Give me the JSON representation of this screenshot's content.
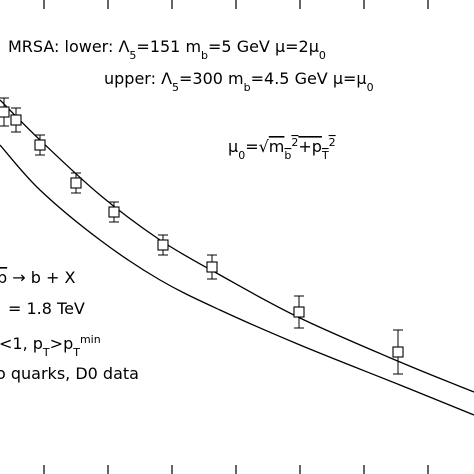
{
  "chart_data": {
    "type": "scatter",
    "xlim": [
      0,
      474
    ],
    "ylim": [
      0,
      474
    ],
    "xticks": [
      44,
      108,
      172,
      236,
      300,
      364,
      428
    ],
    "x": [
      4,
      16,
      40,
      76,
      114,
      163,
      212,
      299,
      398
    ],
    "series": [
      {
        "color": "#000000",
        "values": [
          362,
          354,
          329,
          291,
          262,
          229,
          207,
          162,
          122
        ],
        "errors": [
          14,
          12,
          10,
          10,
          10,
          10,
          12,
          16,
          22
        ]
      }
    ],
    "curves": [
      {
        "color": "#000000",
        "x": [
          0,
          40,
          100,
          160,
          220,
          300,
          400,
          474
        ],
        "values": [
          374,
          334,
          279,
          234,
          199,
          156,
          112,
          82
        ]
      },
      {
        "color": "#000000",
        "x": [
          0,
          40,
          100,
          160,
          220,
          300,
          400,
          474
        ],
        "values": [
          329,
          284,
          234,
          194,
          164,
          129,
          89,
          59
        ]
      }
    ],
    "annotations": [
      {
        "runs": [
          {
            "text": "MRSA:   lower:  Λ"
          },
          {
            "text": "5",
            "shift": "sub"
          },
          {
            "text": "=151   m"
          },
          {
            "text": "b",
            "shift": "sub"
          },
          {
            "text": "=5 GeV   μ=2μ"
          },
          {
            "text": "0",
            "shift": "sub"
          }
        ]
      },
      {
        "runs": [
          {
            "text": "upper:  Λ"
          },
          {
            "text": "5",
            "shift": "sub"
          },
          {
            "text": "=300   m"
          },
          {
            "text": "b",
            "shift": "sub"
          },
          {
            "text": "=4.5 GeV   μ=μ"
          },
          {
            "text": "0",
            "shift": "sub"
          }
        ]
      },
      {
        "runs": [
          {
            "text": "μ"
          },
          {
            "text": "0",
            "shift": "sub"
          },
          {
            "text": "=√"
          },
          {
            "text": "m",
            "overline": true
          },
          {
            "text": "b",
            "shift": "sub",
            "overline": true
          },
          {
            "text": "2",
            "shift": "super",
            "overline": true
          },
          {
            "text": "+p",
            "overline": true
          },
          {
            "text": "T",
            "shift": "sub",
            "overline": true
          },
          {
            "text": "2",
            "shift": "super",
            "overline": true
          }
        ]
      },
      {
        "runs": [
          {
            "text": "b",
            "overline": true
          },
          {
            "text": " → b + X"
          }
        ]
      },
      {
        "runs": [
          {
            "text": "= 1.8 TeV"
          }
        ]
      },
      {
        "runs": [
          {
            "text": "<1, p"
          },
          {
            "text": "T",
            "shift": "sub"
          },
          {
            "text": ">p"
          },
          {
            "text": "T",
            "shift": "sub"
          },
          {
            "text": "min",
            "shift": "super"
          }
        ]
      },
      {
        "runs": [
          {
            "text": "o quarks, D0 data"
          }
        ]
      }
    ]
  }
}
